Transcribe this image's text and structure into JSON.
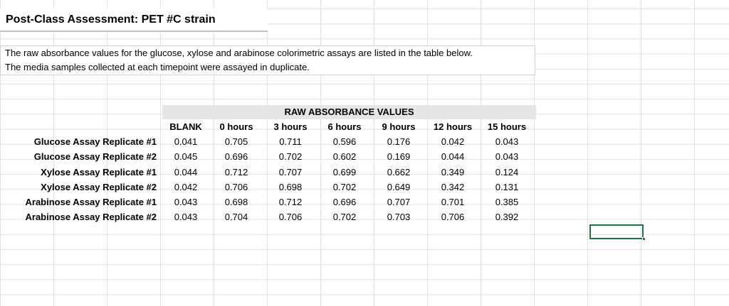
{
  "title": "Post-Class Assessment: PET #C strain",
  "intro": {
    "line1": "The raw absorbance values for the glucose, xylose and arabinose colorimetric assays are listed in the table below.",
    "line2": "The media samples collected at each timepoint were assayed in duplicate."
  },
  "table": {
    "header": "RAW ABSORBANCE VALUES",
    "columns": [
      "BLANK",
      "0 hours",
      "3 hours",
      "6 hours",
      "9 hours",
      "12 hours",
      "15 hours"
    ],
    "rows": [
      {
        "label": "Glucose Assay Replicate #1",
        "values": [
          "0.041",
          "0.705",
          "0.711",
          "0.596",
          "0.176",
          "0.042",
          "0.043"
        ]
      },
      {
        "label": "Glucose Assay Replicate #2",
        "values": [
          "0.045",
          "0.696",
          "0.702",
          "0.602",
          "0.169",
          "0.044",
          "0.043"
        ]
      },
      {
        "label": "Xylose Assay Replicate #1",
        "values": [
          "0.044",
          "0.712",
          "0.707",
          "0.699",
          "0.662",
          "0.349",
          "0.124"
        ]
      },
      {
        "label": "Xylose Assay Replicate #2",
        "values": [
          "0.042",
          "0.706",
          "0.698",
          "0.702",
          "0.649",
          "0.342",
          "0.131"
        ]
      },
      {
        "label": "Arabinose Assay Replicate #1",
        "values": [
          "0.043",
          "0.698",
          "0.712",
          "0.696",
          "0.707",
          "0.701",
          "0.385"
        ]
      },
      {
        "label": "Arabinose Assay Replicate #2",
        "values": [
          "0.043",
          "0.704",
          "0.706",
          "0.702",
          "0.703",
          "0.706",
          "0.392"
        ]
      }
    ]
  },
  "colors": {
    "gridline": "#e1e1e1",
    "header_fill": "#e6e6e6",
    "selection": "#217346"
  }
}
